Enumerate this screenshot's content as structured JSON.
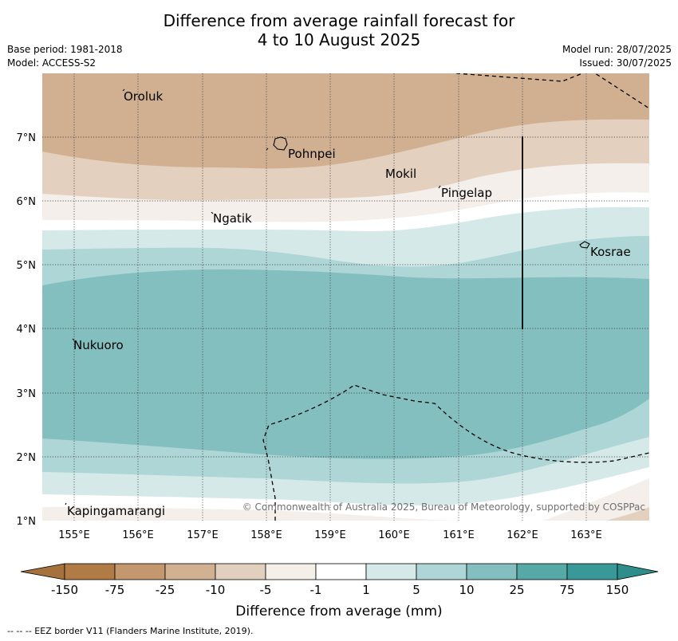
{
  "title_line1": "Difference from average rainfall forecast for",
  "title_line2": "4 to 10 August 2025",
  "base_period": "Base period: 1981-2018",
  "model": "Model: ACCESS-S2",
  "model_run": "Model run: 28/07/2025",
  "issued": "Issued: 30/07/2025",
  "copyright": "© Commonwealth of Australia 2025, Bureau of Meteorology, supported by COSPPac",
  "places": [
    {
      "name": "Oroluk",
      "lon": 155.75,
      "lat": 7.62
    },
    {
      "name": "Pohnpei",
      "lon": 158.3,
      "lat": 6.9
    },
    {
      "name": "Mokil",
      "lon": 159.9,
      "lat": 6.4
    },
    {
      "name": "Pingelap",
      "lon": 160.72,
      "lat": 6.1
    },
    {
      "name": "Ngatik",
      "lon": 157.15,
      "lat": 5.7
    },
    {
      "name": "Kosrae",
      "lon": 163.0,
      "lat": 5.3
    },
    {
      "name": "Nukuoro",
      "lon": 154.97,
      "lat": 3.72
    },
    {
      "name": "Kapingamarangi",
      "lon": 154.87,
      "lat": 1.08
    }
  ],
  "map": {
    "lon_ticks": [
      "155°E",
      "156°E",
      "157°E",
      "158°E",
      "159°E",
      "160°E",
      "161°E",
      "162°E",
      "163°E"
    ],
    "lat_ticks": [
      "1°N",
      "2°N",
      "3°N",
      "4°N",
      "5°N",
      "6°N",
      "7°N"
    ],
    "lon_range": [
      154.5,
      164.0
    ],
    "lat_range": [
      1.0,
      8.0
    ]
  },
  "colorbar": {
    "labels": [
      "-150",
      "-75",
      "-25",
      "-10",
      "-5",
      "-1",
      "1",
      "5",
      "10",
      "25",
      "75",
      "150"
    ],
    "colors": [
      "#a5723e",
      "#b17b46",
      "#c4986f",
      "#d2b192",
      "#e2d0bf",
      "#f4efe9",
      "#ffffff",
      "#d5e9e8",
      "#aed6d6",
      "#84bfbf",
      "#57a9a8",
      "#389998",
      "#2f8d8c"
    ],
    "label": "Difference from average (mm)"
  },
  "legend_note": "-- -- -- EEZ border V11 (Flanders Marine Institute, 2019)."
}
